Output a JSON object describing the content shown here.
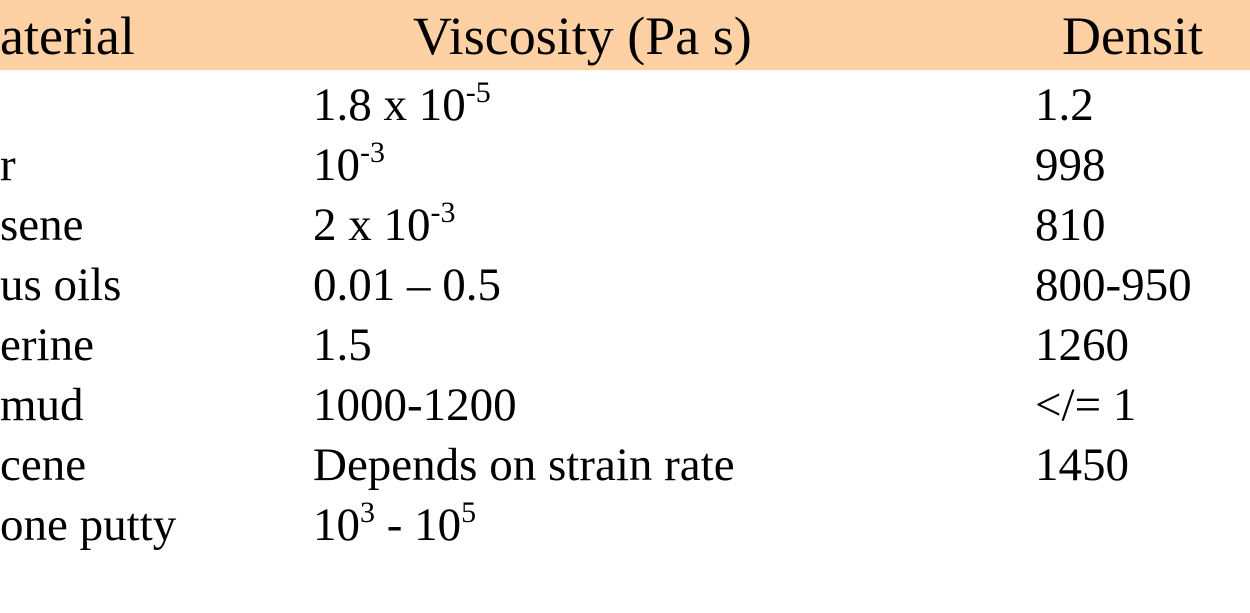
{
  "table": {
    "header": [
      "aterial",
      "Viscosity (Pa s)",
      "Densit"
    ],
    "rows": [
      {
        "viscosity": [
          {
            "text": "1.8 x 10"
          },
          {
            "sup": "-5"
          }
        ],
        "density": "1.2"
      },
      {
        "material": "r",
        "viscosity": [
          {
            "text": "10"
          },
          {
            "sup": "-3"
          }
        ],
        "density": "998"
      },
      {
        "material": "sene",
        "viscosity": [
          {
            "text": "2 x 10"
          },
          {
            "sup": "-3"
          }
        ],
        "density": "810"
      },
      {
        "material": "us oils",
        "viscosity": [
          {
            "text": "0.01 – 0.5"
          }
        ],
        "density": "800-950"
      },
      {
        "material": "erine",
        "viscosity": [
          {
            "text": "1.5"
          }
        ],
        "density": "1260"
      },
      {
        "material": "mud",
        "viscosity": [
          {
            "text": "1000-1200"
          }
        ],
        "density": "</= 1"
      },
      {
        "material": "cene",
        "viscosity": [
          {
            "text": "Depends on strain rate"
          }
        ],
        "density": "1450"
      },
      {
        "material": "one putty",
        "viscosity": [
          {
            "text": "10"
          },
          {
            "sup": "3"
          },
          {
            "text": " - 10"
          },
          {
            "sup": "5"
          }
        ]
      }
    ]
  }
}
